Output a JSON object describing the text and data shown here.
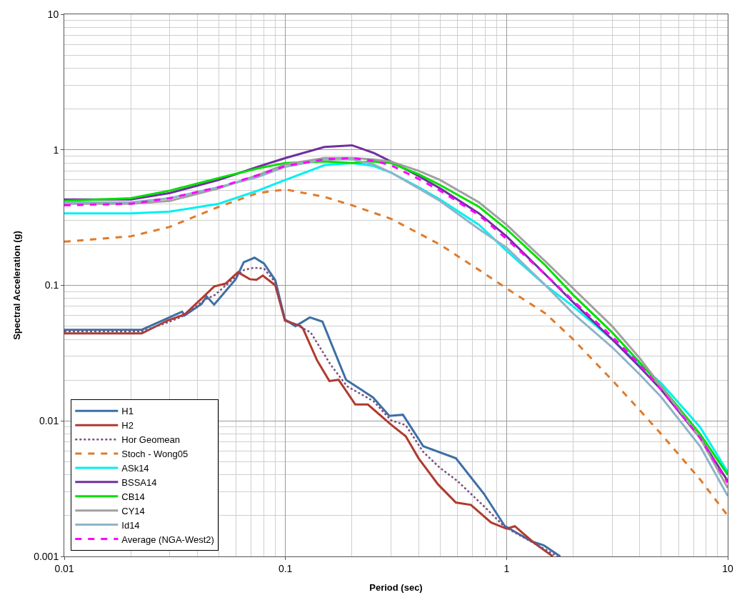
{
  "chart_data": {
    "type": "line",
    "xlabel": "Period (sec)",
    "ylabel": "Spectral Acceleration (g)",
    "log": "xy",
    "grid": true,
    "legend": "bottom left",
    "marker": "none",
    "xlim": [
      0.01,
      10
    ],
    "xticks": [
      0.01,
      0.1,
      1,
      10
    ],
    "ylim": [
      0.001,
      10
    ],
    "yticks": [
      0.001,
      0.01,
      0.1,
      1,
      10
    ],
    "series": [
      {
        "name": "H1",
        "color": "#3d6fa6",
        "line_style": "solid",
        "x": [
          0.01,
          0.0224,
          0.0341,
          0.035,
          0.0418,
          0.044,
          0.0476,
          0.0596,
          0.0648,
          0.0725,
          0.08,
          0.09,
          0.0995,
          0.111,
          0.129,
          0.147,
          0.188,
          0.249,
          0.295,
          0.34,
          0.42,
          0.59,
          0.79,
          0.98,
          1.3,
          1.47,
          1.75
        ],
        "values": [
          0.047,
          0.047,
          0.064,
          0.06,
          0.073,
          0.083,
          0.072,
          0.111,
          0.148,
          0.16,
          0.145,
          0.109,
          0.056,
          0.05,
          0.058,
          0.054,
          0.0201,
          0.0149,
          0.0109,
          0.0111,
          0.0065,
          0.0053,
          0.0029,
          0.00168,
          0.00129,
          0.00121,
          0.001
        ]
      },
      {
        "name": "H2",
        "color": "#b03a2e",
        "line_style": "solid",
        "x": [
          0.01,
          0.0224,
          0.0293,
          0.035,
          0.0428,
          0.0476,
          0.0536,
          0.061,
          0.069,
          0.074,
          0.079,
          0.09,
          0.0995,
          0.117,
          0.12,
          0.139,
          0.158,
          0.174,
          0.207,
          0.236,
          0.3,
          0.35,
          0.4,
          0.49,
          0.59,
          0.69,
          0.85,
          1.0,
          1.09,
          1.33,
          1.62
        ],
        "values": [
          0.0442,
          0.0442,
          0.055,
          0.061,
          0.083,
          0.098,
          0.103,
          0.125,
          0.111,
          0.11,
          0.118,
          0.1,
          0.055,
          0.05,
          0.048,
          0.028,
          0.0197,
          0.0201,
          0.0132,
          0.0132,
          0.0094,
          0.0077,
          0.0053,
          0.0034,
          0.0025,
          0.0024,
          0.00178,
          0.0016,
          0.00167,
          0.00126,
          0.001
        ]
      },
      {
        "name": "Hor Geomean",
        "color": "#7b4f7f",
        "line_style": "dotted",
        "x": [
          0.01,
          0.0224,
          0.03,
          0.035,
          0.043,
          0.048,
          0.06,
          0.065,
          0.072,
          0.08,
          0.09,
          0.0995,
          0.115,
          0.13,
          0.16,
          0.19,
          0.25,
          0.3,
          0.35,
          0.42,
          0.5,
          0.6,
          0.8,
          0.98,
          1.3,
          1.7
        ],
        "values": [
          0.0457,
          0.0457,
          0.054,
          0.06,
          0.078,
          0.085,
          0.117,
          0.13,
          0.135,
          0.133,
          0.105,
          0.056,
          0.05,
          0.045,
          0.026,
          0.018,
          0.014,
          0.0101,
          0.0093,
          0.0059,
          0.0045,
          0.0036,
          0.0023,
          0.00165,
          0.00128,
          0.001
        ]
      },
      {
        "name": "Stoch - Wong05",
        "color": "#e07b2a",
        "line_style": "dashed",
        "x": [
          0.01,
          0.02,
          0.03,
          0.05,
          0.075,
          0.1,
          0.15,
          0.2,
          0.3,
          0.5,
          0.75,
          1,
          1.5,
          2,
          3,
          4,
          5,
          7.5,
          10
        ],
        "values": [
          0.21,
          0.23,
          0.27,
          0.38,
          0.48,
          0.51,
          0.45,
          0.39,
          0.31,
          0.2,
          0.13,
          0.095,
          0.062,
          0.04,
          0.02,
          0.012,
          0.008,
          0.0037,
          0.002
        ]
      },
      {
        "name": "ASk14",
        "color": "#00f0f0",
        "line_style": "solid",
        "x": [
          0.01,
          0.02,
          0.03,
          0.05,
          0.075,
          0.1,
          0.15,
          0.2,
          0.25,
          0.3,
          0.4,
          0.5,
          0.75,
          1,
          1.5,
          2,
          3,
          4,
          5,
          7.5,
          10
        ],
        "values": [
          0.34,
          0.34,
          0.35,
          0.4,
          0.5,
          0.6,
          0.77,
          0.8,
          0.76,
          0.68,
          0.53,
          0.43,
          0.28,
          0.18,
          0.1,
          0.07,
          0.04,
          0.026,
          0.019,
          0.009,
          0.0042
        ]
      },
      {
        "name": "BSSA14",
        "color": "#7030a0",
        "line_style": "solid",
        "x": [
          0.01,
          0.02,
          0.03,
          0.05,
          0.075,
          0.1,
          0.15,
          0.2,
          0.25,
          0.3,
          0.4,
          0.5,
          0.75,
          1,
          1.5,
          2,
          3,
          4,
          5,
          7.5,
          10
        ],
        "values": [
          0.43,
          0.43,
          0.48,
          0.6,
          0.75,
          0.87,
          1.05,
          1.08,
          0.95,
          0.82,
          0.64,
          0.52,
          0.34,
          0.23,
          0.12,
          0.075,
          0.04,
          0.025,
          0.017,
          0.0075,
          0.0036
        ]
      },
      {
        "name": "CB14",
        "color": "#00e000",
        "line_style": "solid",
        "x": [
          0.01,
          0.02,
          0.03,
          0.05,
          0.075,
          0.1,
          0.15,
          0.2,
          0.25,
          0.3,
          0.4,
          0.5,
          0.75,
          1,
          1.5,
          2,
          3,
          4,
          5,
          7.5,
          10
        ],
        "values": [
          0.42,
          0.44,
          0.5,
          0.62,
          0.73,
          0.8,
          0.82,
          0.8,
          0.82,
          0.8,
          0.66,
          0.55,
          0.38,
          0.26,
          0.14,
          0.085,
          0.045,
          0.027,
          0.018,
          0.008,
          0.004
        ]
      },
      {
        "name": "CY14",
        "color": "#a0a0a0",
        "line_style": "solid",
        "x": [
          0.01,
          0.02,
          0.03,
          0.05,
          0.075,
          0.1,
          0.15,
          0.2,
          0.25,
          0.3,
          0.4,
          0.5,
          0.75,
          1,
          1.5,
          2,
          3,
          4,
          5,
          7.5,
          10
        ],
        "values": [
          0.4,
          0.4,
          0.42,
          0.52,
          0.65,
          0.78,
          0.87,
          0.87,
          0.85,
          0.82,
          0.7,
          0.6,
          0.41,
          0.28,
          0.15,
          0.095,
          0.05,
          0.029,
          0.018,
          0.0075,
          0.0032
        ]
      },
      {
        "name": "Id14",
        "color": "#8fb4c8",
        "line_style": "solid",
        "x": [
          0.01,
          0.02,
          0.03,
          0.05,
          0.075,
          0.1,
          0.15,
          0.2,
          0.25,
          0.3,
          0.4,
          0.5,
          0.75,
          1,
          1.5,
          2,
          3,
          4,
          5,
          7.5,
          10
        ],
        "values": [
          0.41,
          0.41,
          0.44,
          0.53,
          0.63,
          0.75,
          0.85,
          0.85,
          0.78,
          0.68,
          0.52,
          0.42,
          0.26,
          0.19,
          0.1,
          0.062,
          0.035,
          0.022,
          0.015,
          0.0065,
          0.0028
        ]
      },
      {
        "name": "Average (NGA-West2)",
        "color": "#ff00ff",
        "line_style": "dashed",
        "x": [
          0.01,
          0.02,
          0.03,
          0.05,
          0.075,
          0.1,
          0.15,
          0.2,
          0.25,
          0.3,
          0.4,
          0.5,
          0.75,
          1,
          1.5,
          2,
          3,
          4,
          5,
          7.5,
          10
        ],
        "values": [
          0.39,
          0.4,
          0.44,
          0.53,
          0.65,
          0.76,
          0.85,
          0.87,
          0.83,
          0.77,
          0.61,
          0.5,
          0.33,
          0.22,
          0.12,
          0.077,
          0.042,
          0.026,
          0.017,
          0.0075,
          0.0035
        ]
      }
    ]
  }
}
